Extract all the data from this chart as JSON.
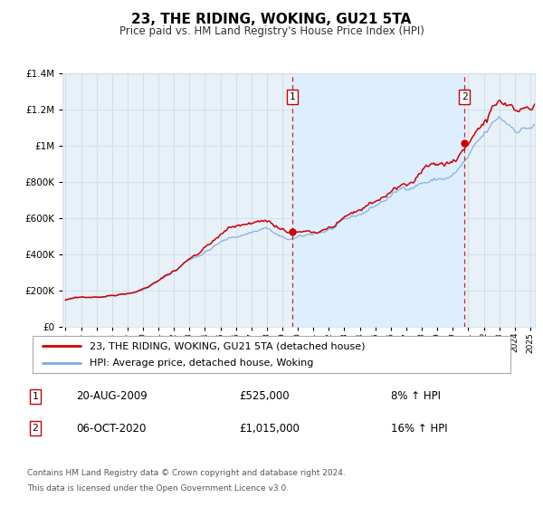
{
  "title": "23, THE RIDING, WOKING, GU21 5TA",
  "subtitle": "Price paid vs. HM Land Registry's House Price Index (HPI)",
  "legend_line1": "23, THE RIDING, WOKING, GU21 5TA (detached house)",
  "legend_line2": "HPI: Average price, detached house, Woking",
  "annotation1_date": "20-AUG-2009",
  "annotation1_price": "£525,000",
  "annotation1_hpi": "8% ↑ HPI",
  "annotation2_date": "06-OCT-2020",
  "annotation2_price": "£1,015,000",
  "annotation2_hpi": "16% ↑ HPI",
  "footer1": "Contains HM Land Registry data © Crown copyright and database right 2024.",
  "footer2": "This data is licensed under the Open Government Licence v3.0.",
  "sale1_year": 2009.63,
  "sale1_value": 525000,
  "sale2_year": 2020.76,
  "sale2_value": 1015000,
  "start_year": 1995.0,
  "end_year": 2025.3,
  "ymin": 0,
  "ymax": 1400000,
  "red_color": "#cc0000",
  "blue_color": "#7aace0",
  "shade_color": "#ddeeff",
  "grid_color": "#c8d8e8",
  "plot_bg_color": "#e8f0f8"
}
